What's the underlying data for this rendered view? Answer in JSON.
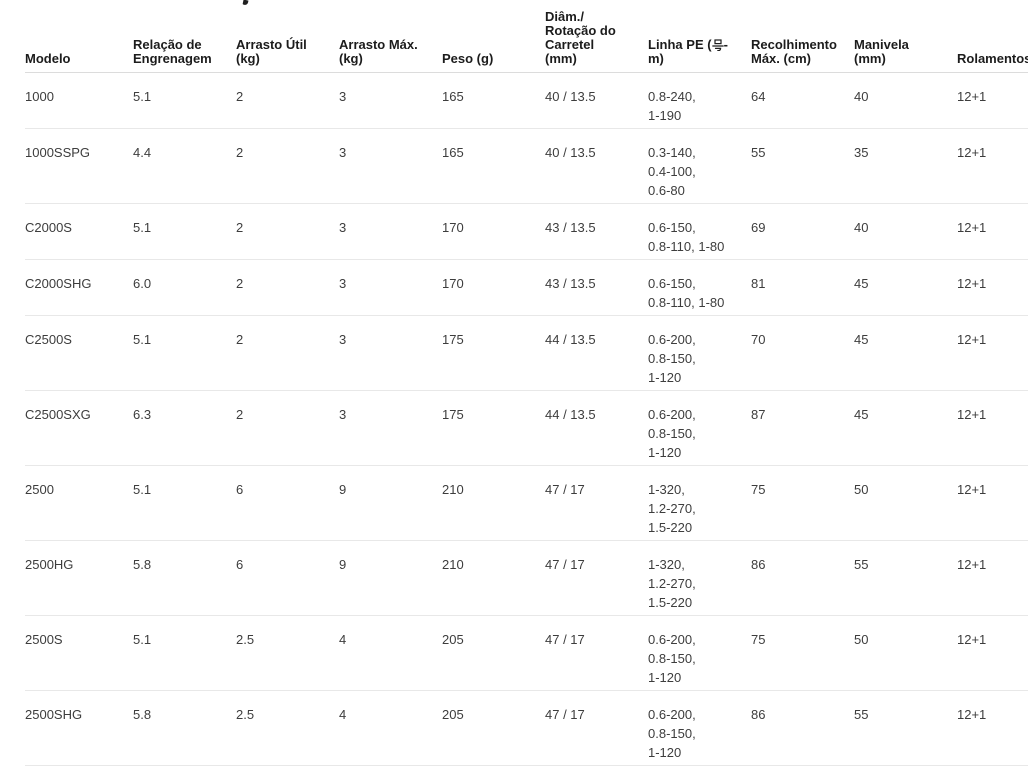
{
  "colors": {
    "page_bg": "#ffffff",
    "header_text": "#1c1c1c",
    "body_text": "#3d3d3d",
    "header_border": "#dcdcdc",
    "row_border": "#e8e8e8"
  },
  "table": {
    "columns": [
      {
        "id": "modelo",
        "label": "Modelo",
        "lines": [
          "Modelo"
        ]
      },
      {
        "id": "relacao",
        "label": "Relação de Engrenagem",
        "lines": [
          "Relação de",
          "Engrenagem"
        ]
      },
      {
        "id": "arrasto_util",
        "label": "Arrasto Útil (kg)",
        "lines": [
          "Arrasto Útil",
          "(kg)"
        ]
      },
      {
        "id": "arrasto_max",
        "label": "Arrasto Máx. (kg)",
        "lines": [
          "Arrasto Máx.",
          "(kg)"
        ]
      },
      {
        "id": "peso",
        "label": "Peso (g)",
        "lines": [
          "Peso (g)"
        ]
      },
      {
        "id": "diam",
        "label": "Diâm./Rotação do Carretel (mm)",
        "lines": [
          "Diâm./",
          "Rotação do",
          "Carretel",
          "(mm)"
        ]
      },
      {
        "id": "linha_pe",
        "label": "Linha PE (号-m)",
        "lines": [
          "Linha PE (号-",
          "m)"
        ]
      },
      {
        "id": "recolhimento",
        "label": "Recolhimento Máx. (cm)",
        "lines": [
          "Recolhimento",
          "Máx. (cm)"
        ]
      },
      {
        "id": "manivela",
        "label": "Manivela (mm)",
        "lines": [
          "Manivela",
          "(mm)"
        ]
      },
      {
        "id": "rolamentos",
        "label": "Rolamentos",
        "lines": [
          "Rolamentos"
        ]
      }
    ],
    "rows": [
      {
        "modelo": "1000",
        "relacao": "5.1",
        "arrasto_util": "2",
        "arrasto_max": "3",
        "peso": "165",
        "diam": "40 / 13.5",
        "linha_pe": [
          "0.8-240,",
          "1-190"
        ],
        "recolhimento": "64",
        "manivela": "40",
        "rolamentos": "12+1"
      },
      {
        "modelo": "1000SSPG",
        "relacao": "4.4",
        "arrasto_util": "2",
        "arrasto_max": "3",
        "peso": "165",
        "diam": "40 / 13.5",
        "linha_pe": [
          "0.3-140,",
          "0.4-100,",
          "0.6-80"
        ],
        "recolhimento": "55",
        "manivela": "35",
        "rolamentos": "12+1"
      },
      {
        "modelo": "C2000S",
        "relacao": "5.1",
        "arrasto_util": "2",
        "arrasto_max": "3",
        "peso": "170",
        "diam": "43 / 13.5",
        "linha_pe": [
          "0.6-150,",
          "0.8-110, 1-80"
        ],
        "recolhimento": "69",
        "manivela": "40",
        "rolamentos": "12+1"
      },
      {
        "modelo": "C2000SHG",
        "relacao": "6.0",
        "arrasto_util": "2",
        "arrasto_max": "3",
        "peso": "170",
        "diam": "43 / 13.5",
        "linha_pe": [
          "0.6-150,",
          "0.8-110, 1-80"
        ],
        "recolhimento": "81",
        "manivela": "45",
        "rolamentos": "12+1"
      },
      {
        "modelo": "C2500S",
        "relacao": "5.1",
        "arrasto_util": "2",
        "arrasto_max": "3",
        "peso": "175",
        "diam": "44 / 13.5",
        "linha_pe": [
          "0.6-200,",
          "0.8-150,",
          "1-120"
        ],
        "recolhimento": "70",
        "manivela": "45",
        "rolamentos": "12+1"
      },
      {
        "modelo": "C2500SXG",
        "relacao": "6.3",
        "arrasto_util": "2",
        "arrasto_max": "3",
        "peso": "175",
        "diam": "44 / 13.5",
        "linha_pe": [
          "0.6-200,",
          "0.8-150,",
          "1-120"
        ],
        "recolhimento": "87",
        "manivela": "45",
        "rolamentos": "12+1"
      },
      {
        "modelo": "2500",
        "relacao": "5.1",
        "arrasto_util": "6",
        "arrasto_max": "9",
        "peso": "210",
        "diam": "47 / 17",
        "linha_pe": [
          "1-320,",
          "1.2-270,",
          "1.5-220"
        ],
        "recolhimento": "75",
        "manivela": "50",
        "rolamentos": "12+1"
      },
      {
        "modelo": "2500HG",
        "relacao": "5.8",
        "arrasto_util": "6",
        "arrasto_max": "9",
        "peso": "210",
        "diam": "47 / 17",
        "linha_pe": [
          "1-320,",
          "1.2-270,",
          "1.5-220"
        ],
        "recolhimento": "86",
        "manivela": "55",
        "rolamentos": "12+1"
      },
      {
        "modelo": "2500S",
        "relacao": "5.1",
        "arrasto_util": "2.5",
        "arrasto_max": "4",
        "peso": "205",
        "diam": "47 / 17",
        "linha_pe": [
          "0.6-200,",
          "0.8-150,",
          "1-120"
        ],
        "recolhimento": "75",
        "manivela": "50",
        "rolamentos": "12+1"
      },
      {
        "modelo": "2500SHG",
        "relacao": "5.8",
        "arrasto_util": "2.5",
        "arrasto_max": "4",
        "peso": "205",
        "diam": "47 / 17",
        "linha_pe": [
          "0.6-200,",
          "0.8-150,",
          "1-120"
        ],
        "recolhimento": "86",
        "manivela": "55",
        "rolamentos": "12+1"
      }
    ]
  }
}
